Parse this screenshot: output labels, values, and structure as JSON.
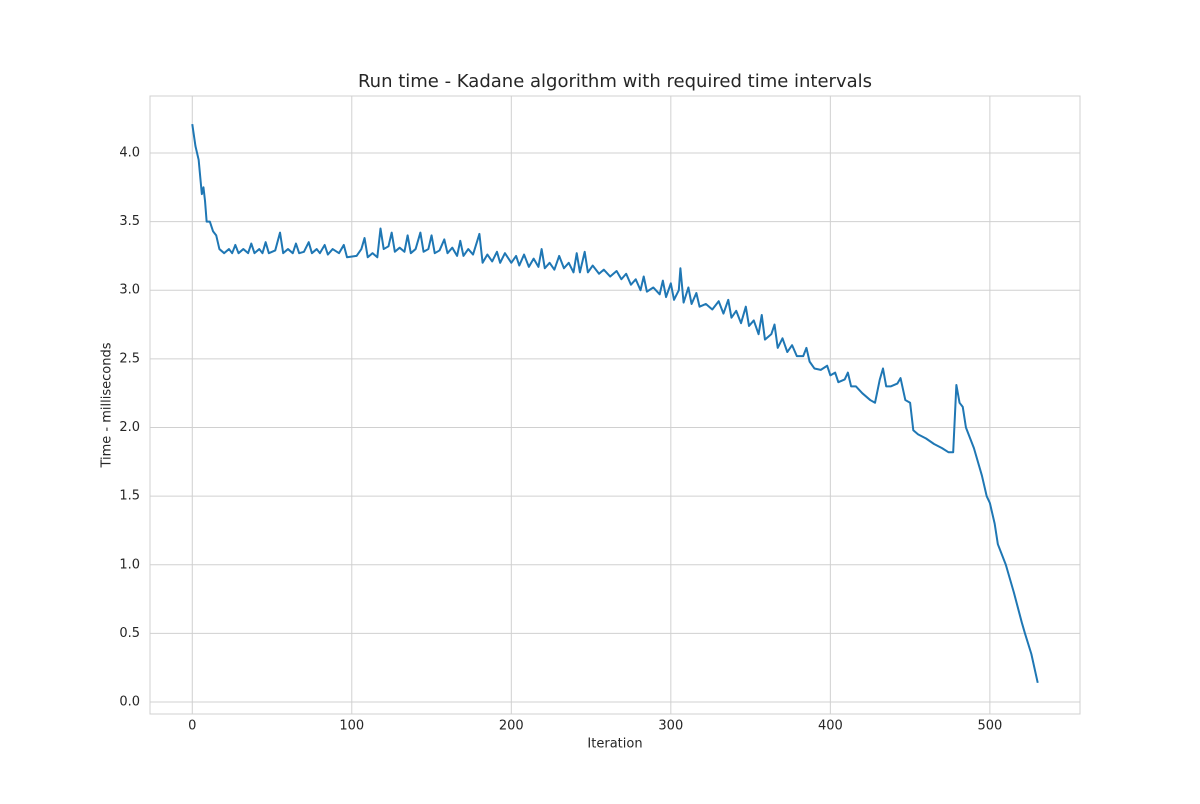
{
  "chart_data": {
    "type": "line",
    "title": "Run time - Kadane algorithm with required time intervals",
    "x_label": "Iteration",
    "y_label": "Time - milliseconds",
    "x": [
      0,
      2,
      4,
      6,
      7,
      8,
      9,
      11,
      13,
      15,
      17,
      20,
      23,
      25,
      27,
      29,
      32,
      35,
      37,
      39,
      42,
      44,
      46,
      48,
      52,
      55,
      57,
      60,
      63,
      65,
      67,
      70,
      73,
      75,
      78,
      80,
      83,
      85,
      88,
      92,
      95,
      97,
      103,
      106,
      108,
      110,
      113,
      116,
      118,
      120,
      123,
      125,
      127,
      130,
      133,
      135,
      137,
      140,
      143,
      145,
      148,
      150,
      152,
      155,
      158,
      160,
      163,
      166,
      168,
      170,
      173,
      176,
      180,
      182,
      185,
      188,
      191,
      193,
      196,
      200,
      203,
      205,
      208,
      211,
      214,
      217,
      219,
      221,
      224,
      227,
      230,
      233,
      236,
      239,
      241,
      243,
      246,
      248,
      251,
      255,
      258,
      262,
      266,
      269,
      272,
      275,
      278,
      281,
      283,
      285,
      289,
      293,
      295,
      297,
      300,
      302,
      305,
      306,
      308,
      311,
      313,
      316,
      318,
      322,
      326,
      330,
      333,
      336,
      338,
      341,
      344,
      347,
      349,
      352,
      355,
      357,
      359,
      363,
      365,
      367,
      370,
      373,
      376,
      379,
      383,
      385,
      387,
      390,
      394,
      398,
      400,
      403,
      405,
      409,
      411,
      413,
      416,
      420,
      425,
      428,
      431,
      433,
      435,
      438,
      442,
      444,
      447,
      450,
      452,
      455,
      460,
      465,
      470,
      474,
      477,
      479,
      481,
      483,
      485,
      490,
      495,
      498,
      500,
      503,
      505,
      510,
      515,
      520,
      522,
      526,
      530
    ],
    "series": [
      {
        "name": "Run time",
        "color": "#1f77b4",
        "values": [
          4.21,
          4.05,
          3.95,
          3.7,
          3.75,
          3.65,
          3.5,
          3.5,
          3.43,
          3.4,
          3.3,
          3.27,
          3.3,
          3.27,
          3.33,
          3.27,
          3.3,
          3.27,
          3.34,
          3.27,
          3.3,
          3.27,
          3.35,
          3.27,
          3.29,
          3.42,
          3.27,
          3.3,
          3.27,
          3.34,
          3.27,
          3.28,
          3.35,
          3.27,
          3.3,
          3.27,
          3.33,
          3.26,
          3.3,
          3.27,
          3.33,
          3.24,
          3.25,
          3.3,
          3.38,
          3.24,
          3.27,
          3.24,
          3.45,
          3.3,
          3.32,
          3.42,
          3.28,
          3.31,
          3.28,
          3.4,
          3.27,
          3.3,
          3.42,
          3.28,
          3.3,
          3.4,
          3.27,
          3.29,
          3.37,
          3.27,
          3.31,
          3.25,
          3.36,
          3.25,
          3.3,
          3.26,
          3.41,
          3.2,
          3.26,
          3.21,
          3.28,
          3.2,
          3.27,
          3.2,
          3.25,
          3.18,
          3.26,
          3.17,
          3.23,
          3.17,
          3.3,
          3.16,
          3.2,
          3.15,
          3.25,
          3.16,
          3.2,
          3.13,
          3.27,
          3.13,
          3.28,
          3.13,
          3.18,
          3.12,
          3.15,
          3.1,
          3.14,
          3.08,
          3.12,
          3.04,
          3.08,
          3.0,
          3.1,
          2.99,
          3.02,
          2.97,
          3.07,
          2.95,
          3.05,
          2.93,
          3.0,
          3.16,
          2.91,
          3.02,
          2.9,
          2.98,
          2.88,
          2.9,
          2.86,
          2.92,
          2.83,
          2.93,
          2.8,
          2.85,
          2.76,
          2.88,
          2.74,
          2.78,
          2.68,
          2.82,
          2.64,
          2.68,
          2.75,
          2.58,
          2.65,
          2.55,
          2.6,
          2.52,
          2.52,
          2.58,
          2.48,
          2.43,
          2.42,
          2.45,
          2.38,
          2.4,
          2.33,
          2.35,
          2.4,
          2.3,
          2.3,
          2.25,
          2.2,
          2.18,
          2.35,
          2.43,
          2.3,
          2.3,
          2.32,
          2.36,
          2.2,
          2.18,
          1.98,
          1.95,
          1.92,
          1.88,
          1.85,
          1.82,
          1.82,
          2.31,
          2.18,
          2.15,
          2.0,
          1.85,
          1.65,
          1.5,
          1.45,
          1.3,
          1.15,
          1.0,
          0.8,
          0.58,
          0.5,
          0.35,
          0.14
        ]
      }
    ],
    "xlim": [
      -26.5,
      556.5
    ],
    "ylim": [
      -0.087,
      4.415
    ],
    "xticks": [
      0,
      100,
      200,
      300,
      400,
      500
    ],
    "yticks": [
      {
        "value": 0,
        "label": "0.0"
      },
      0.5,
      {
        "value": 1,
        "label": "1.0"
      },
      1.5,
      {
        "value": 2,
        "label": "2.0"
      },
      2.5,
      {
        "value": 3,
        "label": "3.0"
      },
      3.5,
      {
        "value": 4,
        "label": "4.0"
      }
    ],
    "grid": true
  }
}
